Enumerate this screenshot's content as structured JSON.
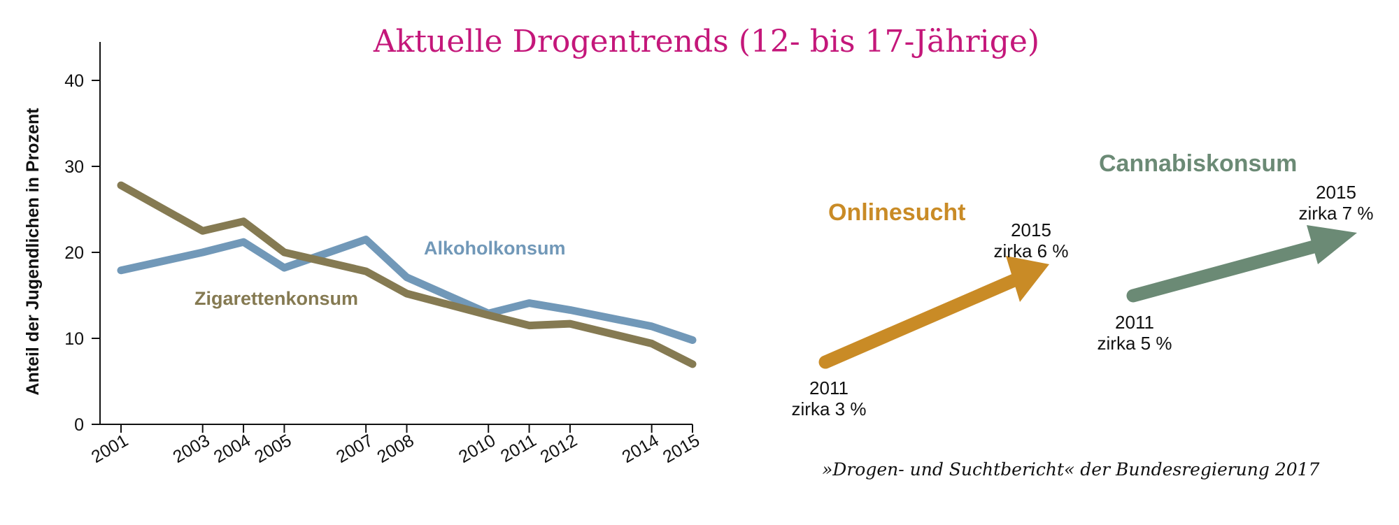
{
  "title": "Aktuelle Drogentrends (12- bis 17-Jährige)",
  "source": "»Drogen- und Suchtbericht« der Bundesregierung 2017",
  "colors": {
    "title": "#c4177a",
    "alkohol": "#7198b8",
    "zigaretten": "#857a52",
    "online": "#c98b26",
    "cannabis": "#6b8a75",
    "axis": "#111111"
  },
  "chart_data": [
    {
      "type": "line",
      "ylabel": "Anteil der Jugendlichen in Prozent",
      "xlabel": "",
      "ylim": [
        0,
        40
      ],
      "yticks": [
        0,
        10,
        20,
        30,
        40
      ],
      "x": [
        2001,
        2003,
        2004,
        2005,
        2007,
        2008,
        2010,
        2011,
        2012,
        2014,
        2015
      ],
      "x_tick_labels": [
        "2001",
        "2003",
        "2004",
        "2005",
        "2007",
        "2008",
        "2010",
        "2011",
        "2012",
        "2014",
        "2015"
      ],
      "grid": false,
      "legend": "inline labels",
      "series": [
        {
          "name": "Alkoholkonsum",
          "color": "#7198b8",
          "values": [
            17.9,
            20.0,
            21.2,
            18.2,
            21.5,
            17.1,
            12.9,
            14.1,
            13.3,
            11.4,
            9.8
          ]
        },
        {
          "name": "Zigarettenkonsum",
          "color": "#857a52",
          "values": [
            27.8,
            22.5,
            23.6,
            20.0,
            17.8,
            15.2,
            12.7,
            11.5,
            11.7,
            9.4,
            7.0
          ]
        }
      ]
    },
    {
      "type": "line",
      "name": "Onlinesucht",
      "color": "#c98b26",
      "x": [
        2011,
        2015
      ],
      "values": [
        3,
        6
      ],
      "labels": {
        "start_year": "2011",
        "start_value": "zirka 3 %",
        "end_year": "2015",
        "end_value": "zirka 6 %"
      }
    },
    {
      "type": "line",
      "name": "Cannabiskonsum",
      "color": "#6b8a75",
      "x": [
        2011,
        2015
      ],
      "values": [
        5,
        7
      ],
      "labels": {
        "start_year": "2011",
        "start_value": "zirka 5 %",
        "end_year": "2015",
        "end_value": "zirka 7 %"
      }
    }
  ]
}
